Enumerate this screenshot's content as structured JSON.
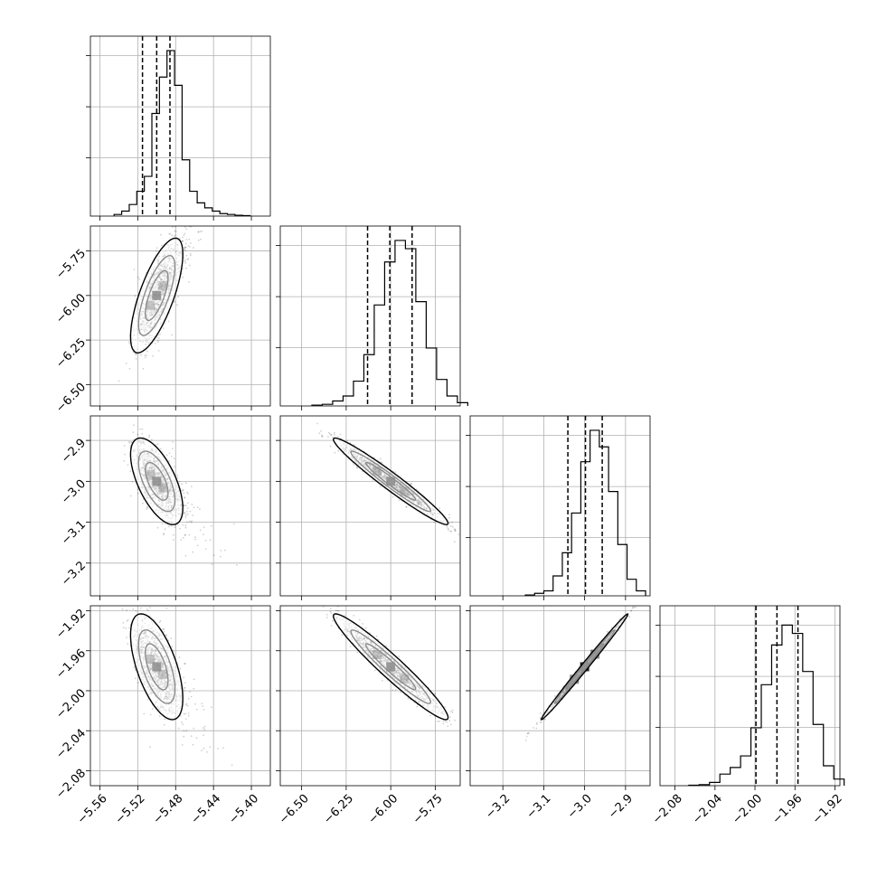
{
  "chart_data": {
    "type": "corner",
    "grid": true,
    "quantiles": [
      0.16,
      0.5,
      0.84
    ],
    "parameters": [
      {
        "range": [
          -5.57,
          -5.38
        ],
        "ticks": [
          -5.56,
          -5.52,
          -5.48,
          -5.44,
          -5.4
        ],
        "tick_labels": [
          "−5.56",
          "−5.52",
          "−5.48",
          "−5.44",
          "−5.40"
        ],
        "median": -5.5,
        "q16": -5.515,
        "q84": -5.486
      },
      {
        "range": [
          -6.62,
          -5.61
        ],
        "ticks": [
          -6.5,
          -6.25,
          -6.0,
          -5.75
        ],
        "tick_labels": [
          "−6.50",
          "−6.25",
          "−6.00",
          "−5.75"
        ],
        "median": -6.005,
        "q16": -6.13,
        "q84": -5.88
      },
      {
        "range": [
          -3.28,
          -2.84
        ],
        "ticks": [
          -3.2,
          -3.1,
          -3.0,
          -2.9
        ],
        "tick_labels": [
          "−3.2",
          "−3.1",
          "−3.0",
          "−2.9"
        ],
        "median": -2.998,
        "q16": -3.041,
        "q84": -2.957
      },
      {
        "range": [
          -2.095,
          -1.915
        ],
        "ticks": [
          -2.08,
          -2.04,
          -2.0,
          -1.96,
          -1.92
        ],
        "tick_labels": [
          "−2.08",
          "−2.04",
          "−2.00",
          "−1.96",
          "−1.92"
        ],
        "median": -1.978,
        "q16": -1.999,
        "q84": -1.957
      }
    ],
    "histograms": [
      [
        0.01,
        0.03,
        0.07,
        0.15,
        0.24,
        0.62,
        0.84,
        1.0,
        0.79,
        0.34,
        0.15,
        0.08,
        0.05,
        0.03,
        0.015,
        0.01,
        0.005,
        0.003
      ],
      [
        0.005,
        0.01,
        0.03,
        0.06,
        0.15,
        0.31,
        0.61,
        0.87,
        1.0,
        0.95,
        0.63,
        0.35,
        0.16,
        0.06,
        0.02
      ],
      [
        0.005,
        0.015,
        0.03,
        0.12,
        0.26,
        0.5,
        0.81,
        1.0,
        0.9,
        0.63,
        0.31,
        0.1,
        0.03
      ],
      [
        0.003,
        0.006,
        0.02,
        0.07,
        0.11,
        0.18,
        0.35,
        0.61,
        0.85,
        0.97,
        0.92,
        0.69,
        0.37,
        0.12,
        0.04
      ]
    ],
    "pairs": [
      {
        "x": 0,
        "y": 1,
        "mean": [
          -5.5,
          -6.0
        ],
        "sd": [
          0.012,
          0.14
        ],
        "rho": 0.72
      },
      {
        "x": 0,
        "y": 2,
        "mean": [
          -5.5,
          -3.0
        ],
        "sd": [
          0.012,
          0.046
        ],
        "rho": -0.62
      },
      {
        "x": 0,
        "y": 3,
        "mean": [
          -5.5,
          -1.976
        ],
        "sd": [
          0.012,
          0.023
        ],
        "rho": -0.6
      },
      {
        "x": 1,
        "y": 2,
        "mean": [
          -6.0,
          -3.0
        ],
        "sd": [
          0.14,
          0.046
        ],
        "rho": -0.97
      },
      {
        "x": 1,
        "y": 3,
        "mean": [
          -6.0,
          -1.976
        ],
        "sd": [
          0.14,
          0.023
        ],
        "rho": -0.96
      },
      {
        "x": 2,
        "y": 3,
        "mean": [
          -3.0,
          -1.976
        ],
        "sd": [
          0.046,
          0.023
        ],
        "rho": 0.995
      }
    ],
    "colors": {
      "line": "#000000",
      "grid": "#b0b0b0",
      "points": "#000000",
      "background": "#ffffff"
    }
  }
}
